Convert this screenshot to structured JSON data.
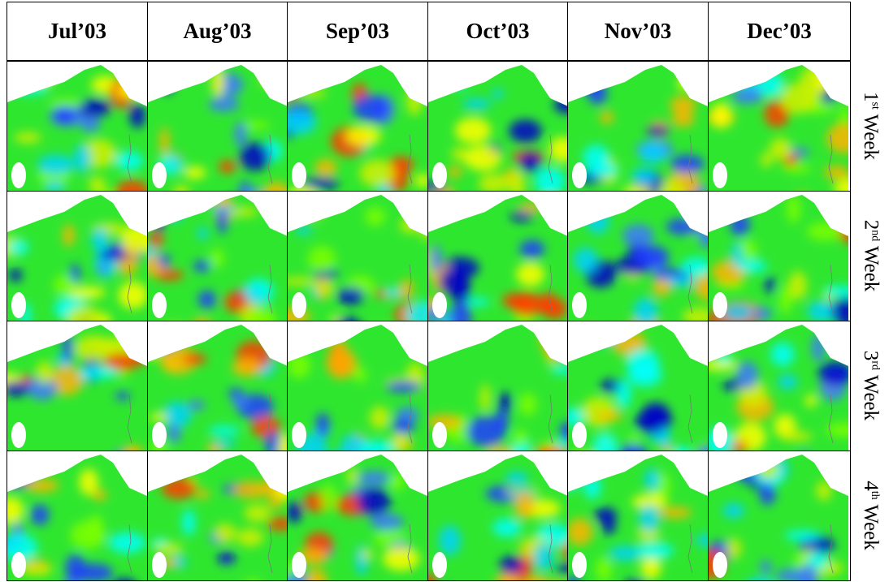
{
  "columns": [
    "Jul’03",
    "Aug’03",
    "Sep’03",
    "Oct’03",
    "Nov’03",
    "Dec’03"
  ],
  "rows": [
    {
      "ordinal": "1",
      "suffix": "st",
      "word": "Week"
    },
    {
      "ordinal": "2",
      "suffix": "nd",
      "word": "Week"
    },
    {
      "ordinal": "3",
      "suffix": "rd",
      "word": "Week"
    },
    {
      "ordinal": "4",
      "suffix": "th",
      "word": "Week"
    }
  ]
}
